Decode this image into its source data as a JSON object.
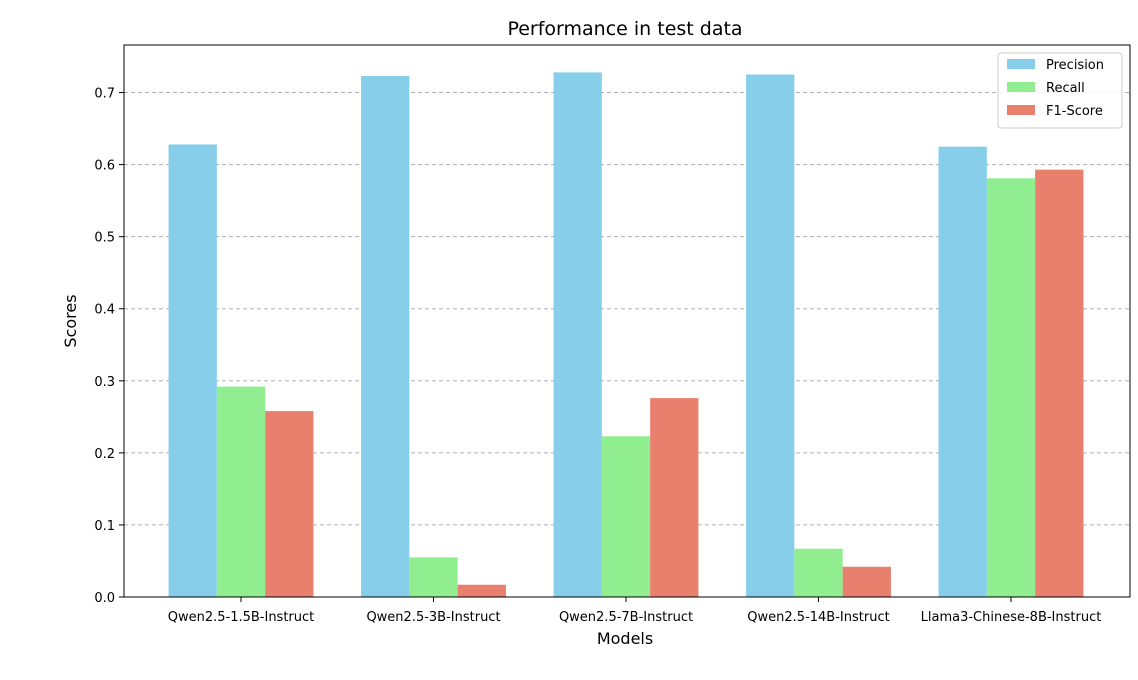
{
  "chart_data": {
    "type": "bar",
    "title": "Performance in test data",
    "xlabel": "Models",
    "ylabel": "Scores",
    "categories": [
      "Qwen2.5-1.5B-Instruct",
      "Qwen2.5-3B-Instruct",
      "Qwen2.5-7B-Instruct",
      "Qwen2.5-14B-Instruct",
      "Llama3-Chinese-8B-Instruct"
    ],
    "series": [
      {
        "name": "Precision",
        "color": "#87CEEB",
        "values": [
          0.628,
          0.723,
          0.728,
          0.725,
          0.625
        ]
      },
      {
        "name": "Recall",
        "color": "#90EE90",
        "values": [
          0.292,
          0.055,
          0.223,
          0.067,
          0.581
        ]
      },
      {
        "name": "F1-Score",
        "color": "#E9806E",
        "values": [
          0.258,
          0.017,
          0.276,
          0.042,
          0.593
        ]
      }
    ],
    "ylim": [
      0,
      0.766
    ],
    "yticks": [
      0.0,
      0.1,
      0.2,
      0.3,
      0.4,
      0.5,
      0.6,
      0.7
    ],
    "ytick_labels": [
      "0.0",
      "0.1",
      "0.2",
      "0.3",
      "0.4",
      "0.5",
      "0.6",
      "0.7"
    ],
    "grid": "y-dashed",
    "legend_position": "top-right"
  }
}
